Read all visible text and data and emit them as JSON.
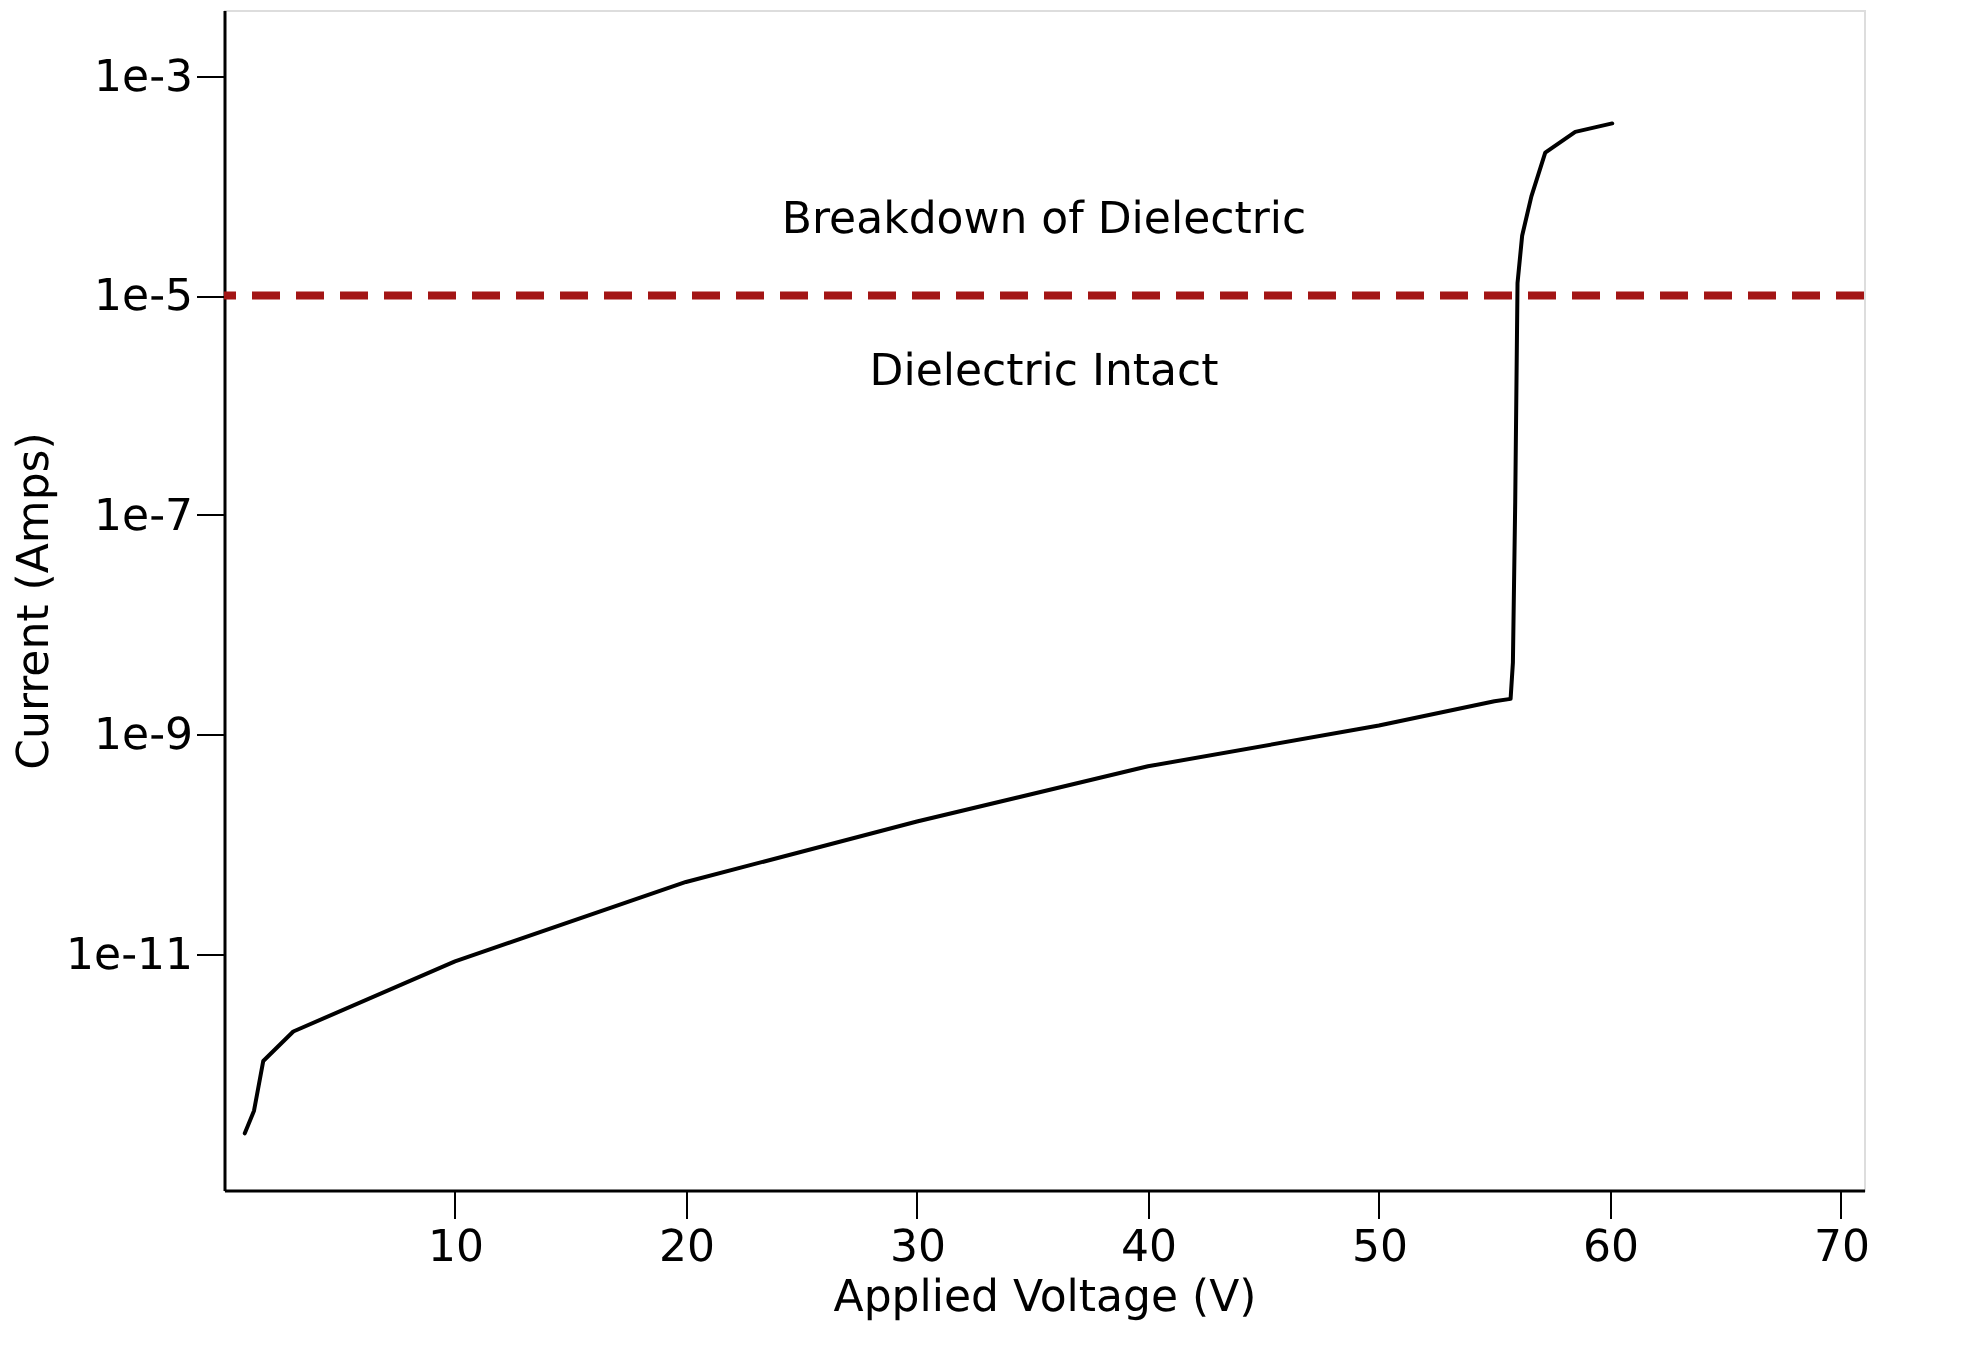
{
  "chart_data": {
    "type": "line",
    "xlabel": "Applied Voltage (V)",
    "ylabel": "Current (Amps)",
    "log": "y",
    "grid": false,
    "marker": "none",
    "line_style": "solid",
    "xlim": [
      0,
      71
    ],
    "xticks": [
      10,
      20,
      30,
      40,
      50,
      60,
      70
    ],
    "ylim": [
      7e-14,
      0.004
    ],
    "yticks": [
      {
        "value": 0.001,
        "label": "1e-3"
      },
      {
        "value": 1e-05,
        "label": "1e-5"
      },
      {
        "value": 1e-07,
        "label": "1e-7"
      },
      {
        "value": 1e-09,
        "label": "1e-9"
      },
      {
        "value": 1e-11,
        "label": "1e-11"
      }
    ],
    "series": [
      {
        "color": "#000000",
        "x": [
          0.9,
          1.3,
          1.7,
          3,
          10,
          20,
          30,
          40,
          50,
          55,
          55.7,
          55.8,
          55.9,
          56,
          56.2,
          56.6,
          57.2,
          58.5,
          60.1
        ],
        "values": [
          2.3e-13,
          3.7e-13,
          1.05e-12,
          1.95e-12,
          8.5e-12,
          4.5e-11,
          1.6e-10,
          5.1e-10,
          1.2e-09,
          2e-09,
          2.1e-09,
          4.5e-09,
          1.3e-07,
          1.3e-05,
          3.5e-05,
          8e-05,
          0.0002,
          0.00031,
          0.00037
        ]
      }
    ],
    "ref_lines": [
      {
        "axis": "y",
        "value": 1e-05,
        "color": "#a31515",
        "line_style": "dashed"
      }
    ],
    "annotations": [
      "Breakdown of Dielectric",
      "Dielectric Intact"
    ]
  }
}
